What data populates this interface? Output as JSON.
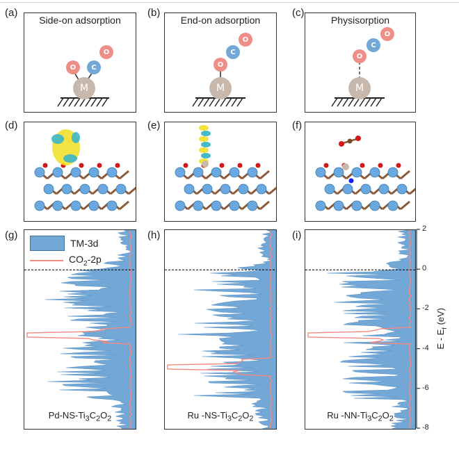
{
  "labels": {
    "a": "(a)",
    "b": "(b)",
    "c": "(c)",
    "d": "(d)",
    "e": "(e)",
    "f": "(f)",
    "g": "(g)",
    "h": "(h)",
    "i": "(i)"
  },
  "schematics": [
    {
      "title": "Side-on adsorption",
      "mode": "side"
    },
    {
      "title": "End-on adsorption",
      "mode": "end"
    },
    {
      "title": "Physisorption",
      "mode": "phys"
    }
  ],
  "atoms": {
    "metal": "M",
    "carbon": "C",
    "oxygen": "O"
  },
  "colors": {
    "tm3d": "#72a7d6",
    "co2": "#f28b84",
    "oxygen": "#ef8e86",
    "carbon": "#72a7d6",
    "metal": "#c8b8ac",
    "ti": "#6aa8e0",
    "substrate_c": "#8a5a3a",
    "iso_yellow": "#f2e02e",
    "iso_cyan": "#3bb6c8"
  },
  "legend": {
    "tm": "TM-3d",
    "co2_main": "CO",
    "co2_sub": "2",
    "co2_tail": "-2p"
  },
  "dos_panels": [
    {
      "pre": "Pd-NS-Ti",
      "s1": "3",
      "m": "C",
      "s2": "2",
      "m2": "O",
      "s3": "2"
    },
    {
      "pre": "Ru -NS-Ti",
      "s1": "3",
      "m": "C",
      "s2": "2",
      "m2": "O",
      "s3": "2"
    },
    {
      "pre": "Ru -NN-Ti",
      "s1": "3",
      "m": "C",
      "s2": "2",
      "m2": "O",
      "s3": "2"
    }
  ],
  "axis": {
    "ticks": [
      "2",
      "0",
      "-2",
      "-4",
      "-6",
      "-8"
    ],
    "title_main": "E - E",
    "title_sub": "f",
    "title_tail": " (eV)"
  },
  "chart_data": {
    "type": "area",
    "ylabel": "E - Ef (eV)",
    "ylim": [
      -8,
      2
    ],
    "series": [
      {
        "name": "TM-3d",
        "panels": [
          "Pd-NS-Ti3C2O2",
          "Ru-NS-Ti3C2O2",
          "Ru-NN-Ti3C2O2"
        ]
      },
      {
        "name": "CO2-2p",
        "peaks_eV": [
          -3.3,
          -4.9,
          -3.3
        ]
      }
    ]
  }
}
